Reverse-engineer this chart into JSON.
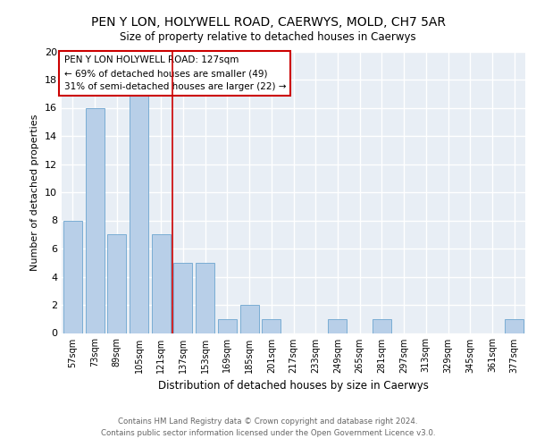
{
  "title1": "PEN Y LON, HOLYWELL ROAD, CAERWYS, MOLD, CH7 5AR",
  "title2": "Size of property relative to detached houses in Caerwys",
  "xlabel": "Distribution of detached houses by size in Caerwys",
  "ylabel": "Number of detached properties",
  "categories": [
    "57sqm",
    "73sqm",
    "89sqm",
    "105sqm",
    "121sqm",
    "137sqm",
    "153sqm",
    "169sqm",
    "185sqm",
    "201sqm",
    "217sqm",
    "233sqm",
    "249sqm",
    "265sqm",
    "281sqm",
    "297sqm",
    "313sqm",
    "329sqm",
    "345sqm",
    "361sqm",
    "377sqm"
  ],
  "values": [
    8,
    16,
    7,
    17,
    7,
    5,
    5,
    1,
    2,
    1,
    0,
    0,
    1,
    0,
    1,
    0,
    0,
    0,
    0,
    0,
    1
  ],
  "bar_color": "#b8cfe8",
  "bar_edge_color": "#7aadd4",
  "vline_x": 4.5,
  "vline_color": "#cc0000",
  "annotation_box_text": "PEN Y LON HOLYWELL ROAD: 127sqm\n← 69% of detached houses are smaller (49)\n31% of semi-detached houses are larger (22) →",
  "annotation_box_color": "#cc0000",
  "ylim": [
    0,
    20
  ],
  "yticks": [
    0,
    2,
    4,
    6,
    8,
    10,
    12,
    14,
    16,
    18,
    20
  ],
  "footer_text": "Contains HM Land Registry data © Crown copyright and database right 2024.\nContains public sector information licensed under the Open Government Licence v3.0.",
  "plot_bg_color": "#e8eef5"
}
